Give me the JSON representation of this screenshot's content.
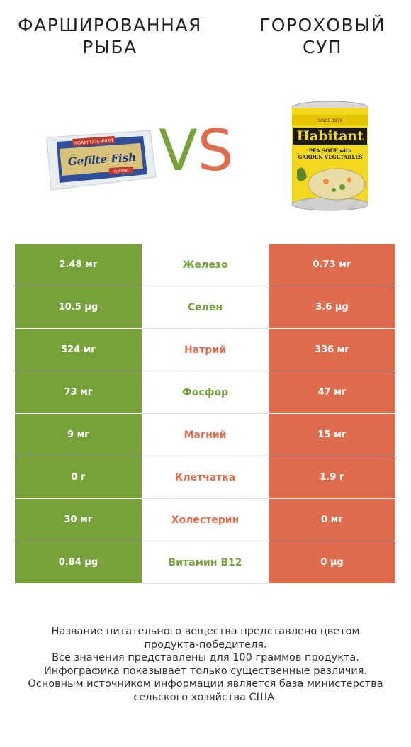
{
  "titles": {
    "left_line1": "ФАРШИРОВАННАЯ",
    "left_line2": "РЫБА",
    "right_line1": "ГОРОХОВЫЙ",
    "right_line2": "СУП"
  },
  "vs": {
    "v": "V",
    "s": "S"
  },
  "colors": {
    "winner_left": "#77a23a",
    "winner_right": "#e06c4e"
  },
  "rows": [
    {
      "left": "2.48 мг",
      "name": "Железо",
      "right": "0.73 мг",
      "winner": "left"
    },
    {
      "left": "10.5 µg",
      "name": "Селен",
      "right": "3.6 µg",
      "winner": "left"
    },
    {
      "left": "524 мг",
      "name": "Натрий",
      "right": "336 мг",
      "winner": "right"
    },
    {
      "left": "73 мг",
      "name": "Фосфор",
      "right": "47 мг",
      "winner": "left"
    },
    {
      "left": "9 мг",
      "name": "Магний",
      "right": "15 мг",
      "winner": "right"
    },
    {
      "left": "0 г",
      "name": "Клетчатка",
      "right": "1.9 г",
      "winner": "right"
    },
    {
      "left": "30 мг",
      "name": "Холестерин",
      "right": "0 мг",
      "winner": "right"
    },
    {
      "left": "0.84 µg",
      "name": "Витамин B12",
      "right": "0 µg",
      "winner": "left"
    }
  ],
  "product_labels": {
    "left_brand": "NOAM GOURMET",
    "left_product": "Gefilte Fish",
    "left_badge": "CLASSIC",
    "right_brand": "Habitant",
    "right_top": "SINCE 1918",
    "right_product_line1": "PEA SOUP with",
    "right_product_line2": "GARDEN VEGETABLES"
  },
  "footer": [
    "Название питательного вещества представлено цветом",
    "продукта-победителя.",
    "Все значения представлены для 100 граммов продукта.",
    "Инфографика показывает только существенные различия.",
    "Основным источником информации является база министерства",
    "сельского хозяйства США."
  ]
}
